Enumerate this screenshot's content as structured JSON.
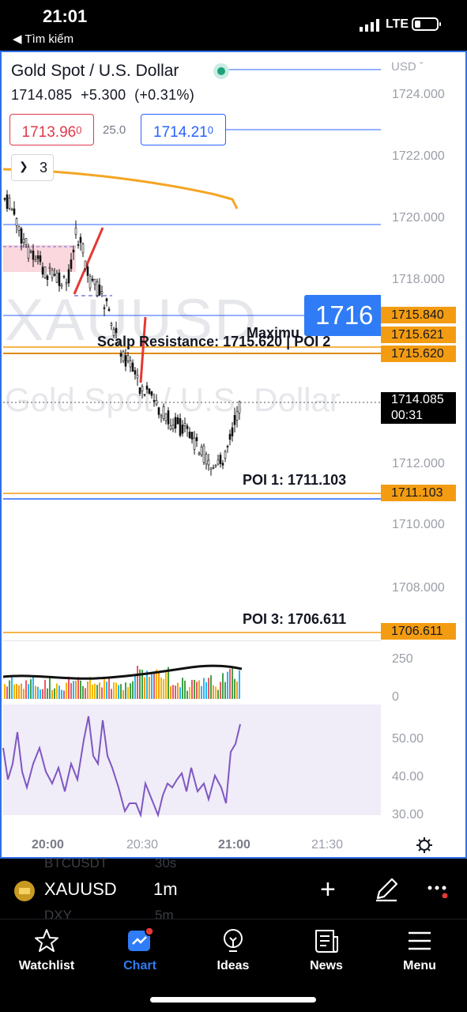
{
  "status_bar": {
    "time": "21:01",
    "back_label": "◀ Tìm kiếm",
    "network": "LTE"
  },
  "header": {
    "title": "Gold Spot / U.S. Dollar",
    "price": "1714.085",
    "change": "+5.300",
    "change_pct": "(+0.31%)"
  },
  "trade": {
    "sell_main": "1713.96",
    "sell_sup": "0",
    "spread": "25.0",
    "buy_main": "1714.21",
    "buy_sup": "0"
  },
  "indicators_toggle": {
    "count": "3"
  },
  "price_axis": {
    "unit": "USD",
    "labels": [
      "1724.000",
      "1722.000",
      "1720.000",
      "1718.000",
      "1712.000",
      "1710.000",
      "1708.000"
    ],
    "tags": [
      "1715.840",
      "1715.621",
      "1715.620",
      "1711.103",
      "1706.611"
    ],
    "current_price": "1714.085",
    "countdown": "00:31",
    "highlight_label": "1716"
  },
  "watermark": {
    "symbol": "XAUUSD",
    "name": "Gold Spot / U.S. Dollar"
  },
  "annotations": {
    "maximum": "Maximu",
    "scalp": "Scalp Resistance: 1715.620 | POI 2",
    "poi1": "POI 1: 1711.103",
    "poi3": "POI 3: 1706.611"
  },
  "volume_axis": {
    "labels": [
      "250",
      "0"
    ]
  },
  "rsi_axis": {
    "labels": [
      "50.00",
      "40.00",
      "30.00"
    ]
  },
  "time_axis": {
    "labels": [
      "20:00",
      "20:30",
      "21:00",
      "21:30"
    ]
  },
  "symbol_bar": {
    "symbol": "XAUUSD",
    "timeframe": "1m",
    "ghost_1": "BTCUSDT",
    "ghost_1b": "30s",
    "ghost_2": "DXY",
    "ghost_2b": "5m"
  },
  "tabs": [
    {
      "label": "Watchlist",
      "icon": "star-icon"
    },
    {
      "label": "Chart",
      "icon": "chart-icon"
    },
    {
      "label": "Ideas",
      "icon": "lightbulb-icon"
    },
    {
      "label": "News",
      "icon": "newspaper-icon"
    },
    {
      "label": "Menu",
      "icon": "menu-icon"
    }
  ],
  "colors": {
    "accent": "#2962ff",
    "sell": "#e0394a",
    "poi": "#f39c12",
    "rsi": "#7e57c2",
    "frame": "#2f6fe8"
  }
}
